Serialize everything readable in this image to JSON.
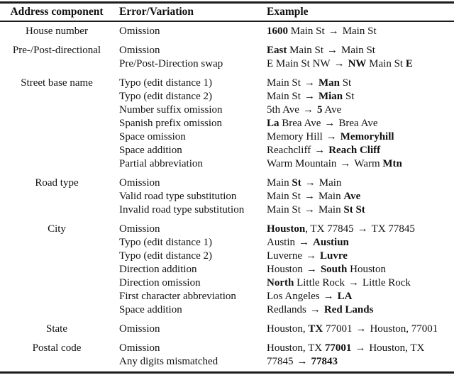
{
  "table": {
    "headers": [
      "Address component",
      "Error/Variation",
      "Example"
    ],
    "rule_color": "#1b1b1b",
    "arrow_char": "→",
    "sections": [
      {
        "component": "House number",
        "rows": [
          {
            "error": "Omission",
            "example": [
              {
                "t": "1600",
                "b": 1
              },
              {
                "t": " Main St"
              },
              {
                "t": "→",
                "arrow": 1
              },
              {
                "t": "Main St"
              }
            ]
          }
        ]
      },
      {
        "component": "Pre-/Post-directional",
        "rows": [
          {
            "error": "Omission",
            "example": [
              {
                "t": "East",
                "b": 1
              },
              {
                "t": " Main St"
              },
              {
                "t": "→",
                "arrow": 1
              },
              {
                "t": "Main St"
              }
            ]
          },
          {
            "error": "Pre/Post-Direction swap",
            "example": [
              {
                "t": "E Main St NW"
              },
              {
                "t": "→",
                "arrow": 1
              },
              {
                "t": "NW",
                "b": 1
              },
              {
                "t": " Main St "
              },
              {
                "t": "E",
                "b": 1
              }
            ]
          }
        ]
      },
      {
        "component": "Street base name",
        "rows": [
          {
            "error": "Typo (edit distance 1)",
            "example": [
              {
                "t": "Main St"
              },
              {
                "t": "→",
                "arrow": 1
              },
              {
                "t": "Man",
                "b": 1
              },
              {
                "t": " St"
              }
            ]
          },
          {
            "error": "Typo (edit distance 2)",
            "example": [
              {
                "t": "Main St"
              },
              {
                "t": "→",
                "arrow": 1
              },
              {
                "t": "Mian",
                "b": 1
              },
              {
                "t": " St"
              }
            ]
          },
          {
            "error": "Number suffix omission",
            "example": [
              {
                "t": "5th Ave"
              },
              {
                "t": "→",
                "arrow": 1
              },
              {
                "t": "5",
                "b": 1
              },
              {
                "t": " Ave"
              }
            ]
          },
          {
            "error": "Spanish prefix omission",
            "example": [
              {
                "t": "La",
                "b": 1
              },
              {
                "t": " Brea Ave"
              },
              {
                "t": "→",
                "arrow": 1
              },
              {
                "t": "Brea Ave"
              }
            ]
          },
          {
            "error": "Space omission",
            "example": [
              {
                "t": "Memory Hill"
              },
              {
                "t": "→",
                "arrow": 1
              },
              {
                "t": "Memoryhill",
                "b": 1
              }
            ]
          },
          {
            "error": "Space addition",
            "example": [
              {
                "t": "Reachcliff"
              },
              {
                "t": "→",
                "arrow": 1
              },
              {
                "t": "Reach Cliff",
                "b": 1
              }
            ]
          },
          {
            "error": "Partial abbreviation",
            "example": [
              {
                "t": "Warm Mountain"
              },
              {
                "t": "→",
                "arrow": 1
              },
              {
                "t": "Warm "
              },
              {
                "t": "Mtn",
                "b": 1
              }
            ]
          }
        ]
      },
      {
        "component": "Road type",
        "rows": [
          {
            "error": "Omission",
            "example": [
              {
                "t": "Main "
              },
              {
                "t": "St",
                "b": 1
              },
              {
                "t": "→",
                "arrow": 1
              },
              {
                "t": "Main"
              }
            ]
          },
          {
            "error": "Valid road type substitution",
            "example": [
              {
                "t": "Main St"
              },
              {
                "t": "→",
                "arrow": 1
              },
              {
                "t": "Main "
              },
              {
                "t": "Ave",
                "b": 1
              }
            ]
          },
          {
            "error": "Invalid road type substitution",
            "example": [
              {
                "t": "Main St"
              },
              {
                "t": "→",
                "arrow": 1
              },
              {
                "t": "Main "
              },
              {
                "t": "St St",
                "b": 1
              }
            ]
          }
        ]
      },
      {
        "component": "City",
        "rows": [
          {
            "error": "Omission",
            "example": [
              {
                "t": "Houston",
                "b": 1
              },
              {
                "t": ", TX 77845"
              },
              {
                "t": "→",
                "arrow": 1
              },
              {
                "t": "TX 77845"
              }
            ]
          },
          {
            "error": "Typo (edit distance 1)",
            "example": [
              {
                "t": "Austin"
              },
              {
                "t": "→",
                "arrow": 1
              },
              {
                "t": "Austiun",
                "b": 1
              }
            ]
          },
          {
            "error": "Typo (edit distance 2)",
            "example": [
              {
                "t": "Luverne"
              },
              {
                "t": "→",
                "arrow": 1
              },
              {
                "t": "Luvre",
                "b": 1
              }
            ]
          },
          {
            "error": "Direction addition",
            "example": [
              {
                "t": "Houston"
              },
              {
                "t": "→",
                "arrow": 1
              },
              {
                "t": "South",
                "b": 1
              },
              {
                "t": " Houston"
              }
            ]
          },
          {
            "error": "Direction omission",
            "example": [
              {
                "t": "North",
                "b": 1
              },
              {
                "t": " Little Rock"
              },
              {
                "t": "→",
                "arrow": 1
              },
              {
                "t": "Little Rock"
              }
            ]
          },
          {
            "error": "First character abbreviation",
            "example": [
              {
                "t": "Los Angeles"
              },
              {
                "t": "→",
                "arrow": 1
              },
              {
                "t": "LA",
                "b": 1
              }
            ]
          },
          {
            "error": "Space addition",
            "example": [
              {
                "t": "Redlands"
              },
              {
                "t": "→",
                "arrow": 1
              },
              {
                "t": "Red Lands",
                "b": 1
              }
            ]
          }
        ]
      },
      {
        "component": "State",
        "rows": [
          {
            "error": "Omission",
            "example": [
              {
                "t": "Houston, "
              },
              {
                "t": "TX",
                "b": 1
              },
              {
                "t": " 77001"
              },
              {
                "t": "→",
                "arrow": 1
              },
              {
                "t": "Houston, 77001"
              }
            ]
          }
        ]
      },
      {
        "component": "Postal code",
        "rows": [
          {
            "error": "Omission",
            "example": [
              {
                "t": "Houston, TX "
              },
              {
                "t": "77001",
                "b": 1
              },
              {
                "t": "→",
                "arrow": 1
              },
              {
                "t": "Houston, TX"
              }
            ]
          },
          {
            "error": "Any digits mismatched",
            "example": [
              {
                "t": "77845"
              },
              {
                "t": "→",
                "arrow": 1
              },
              {
                "t": "77843",
                "b": 1
              }
            ]
          }
        ]
      }
    ]
  }
}
